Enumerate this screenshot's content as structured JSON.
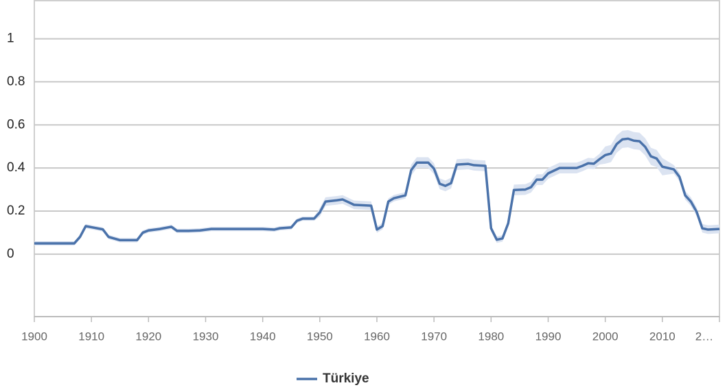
{
  "chart_data": {
    "type": "line",
    "x": [
      1900,
      1907,
      1908,
      1909,
      1912,
      1913,
      1915,
      1918,
      1919,
      1920,
      1922,
      1924,
      1925,
      1927,
      1929,
      1931,
      1940,
      1942,
      1943,
      1945,
      1946,
      1947,
      1949,
      1950,
      1951,
      1953,
      1954,
      1956,
      1959,
      1960,
      1961,
      1962,
      1963,
      1965,
      1966,
      1967,
      1969,
      1970,
      1971,
      1972,
      1973,
      1974,
      1976,
      1977,
      1979,
      1980,
      1981,
      1982,
      1983,
      1984,
      1986,
      1987,
      1988,
      1989,
      1990,
      1992,
      1995,
      1996,
      1997,
      1998,
      1999,
      2000,
      2001,
      2002,
      2003,
      2004,
      2005,
      2006,
      2007,
      2008,
      2009,
      2010,
      2012,
      2013,
      2014,
      2015,
      2016,
      2017,
      2018,
      2020
    ],
    "series": [
      {
        "name": "Türkiye",
        "color": "#4a72aa",
        "band_color": "#dbe3f1",
        "values": [
          0.05,
          0.05,
          0.08,
          0.13,
          0.115,
          0.08,
          0.065,
          0.065,
          0.1,
          0.11,
          0.117,
          0.127,
          0.108,
          0.108,
          0.11,
          0.117,
          0.117,
          0.114,
          0.12,
          0.124,
          0.155,
          0.165,
          0.165,
          0.194,
          0.244,
          0.25,
          0.254,
          0.229,
          0.225,
          0.114,
          0.13,
          0.244,
          0.26,
          0.273,
          0.39,
          0.425,
          0.425,
          0.397,
          0.327,
          0.317,
          0.33,
          0.416,
          0.419,
          0.413,
          0.41,
          0.12,
          0.067,
          0.073,
          0.143,
          0.298,
          0.3,
          0.311,
          0.346,
          0.346,
          0.375,
          0.4,
          0.4,
          0.41,
          0.422,
          0.42,
          0.441,
          0.46,
          0.467,
          0.511,
          0.533,
          0.536,
          0.527,
          0.524,
          0.498,
          0.454,
          0.444,
          0.406,
          0.394,
          0.359,
          0.273,
          0.244,
          0.197,
          0.12,
          0.114,
          0.117
        ],
        "lower": [
          0.04,
          0.04,
          0.07,
          0.12,
          0.105,
          0.07,
          0.055,
          0.055,
          0.09,
          0.1,
          0.107,
          0.117,
          0.098,
          0.098,
          0.1,
          0.107,
          0.107,
          0.104,
          0.11,
          0.114,
          0.145,
          0.155,
          0.155,
          0.174,
          0.224,
          0.23,
          0.234,
          0.209,
          0.205,
          0.099,
          0.115,
          0.229,
          0.245,
          0.258,
          0.365,
          0.4,
          0.4,
          0.372,
          0.302,
          0.292,
          0.305,
          0.391,
          0.394,
          0.388,
          0.385,
          0.105,
          0.052,
          0.058,
          0.128,
          0.273,
          0.275,
          0.286,
          0.321,
          0.321,
          0.35,
          0.375,
          0.375,
          0.385,
          0.397,
          0.395,
          0.416,
          0.42,
          0.427,
          0.471,
          0.493,
          0.496,
          0.487,
          0.484,
          0.458,
          0.414,
          0.404,
          0.366,
          0.374,
          0.339,
          0.253,
          0.224,
          0.177,
          0.1,
          0.094,
          0.097
        ],
        "upper": [
          0.06,
          0.06,
          0.09,
          0.14,
          0.125,
          0.09,
          0.075,
          0.075,
          0.11,
          0.12,
          0.127,
          0.137,
          0.118,
          0.118,
          0.12,
          0.127,
          0.127,
          0.124,
          0.13,
          0.134,
          0.165,
          0.175,
          0.175,
          0.214,
          0.264,
          0.27,
          0.274,
          0.249,
          0.245,
          0.129,
          0.145,
          0.259,
          0.275,
          0.288,
          0.415,
          0.45,
          0.45,
          0.422,
          0.352,
          0.342,
          0.355,
          0.441,
          0.444,
          0.438,
          0.435,
          0.135,
          0.082,
          0.088,
          0.158,
          0.323,
          0.325,
          0.336,
          0.371,
          0.371,
          0.4,
          0.425,
          0.425,
          0.435,
          0.447,
          0.445,
          0.466,
          0.5,
          0.507,
          0.551,
          0.573,
          0.576,
          0.567,
          0.564,
          0.538,
          0.494,
          0.484,
          0.446,
          0.414,
          0.379,
          0.293,
          0.264,
          0.217,
          0.14,
          0.134,
          0.137
        ]
      }
    ],
    "xlim": [
      1900,
      2020
    ],
    "xticks": [
      1900,
      1910,
      1920,
      1930,
      1940,
      1950,
      1960,
      1970,
      1980,
      1990,
      2000,
      2010,
      {
        "value": 2020,
        "label": "2…"
      }
    ],
    "ylim": [
      -0.29,
      1.18
    ],
    "yticks": [
      0,
      {
        "value": 0.2,
        "label": "0.2"
      },
      {
        "value": 0.4,
        "label": "0.4"
      },
      {
        "value": 0.6,
        "label": "0.6"
      },
      {
        "value": 0.8,
        "label": "0.8"
      },
      1
    ],
    "grid": true,
    "legend": "bottom"
  }
}
